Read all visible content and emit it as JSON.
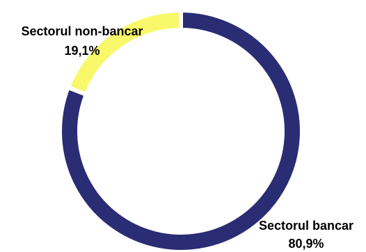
{
  "chart_data": {
    "type": "pie",
    "style": "donut",
    "title": "",
    "gap_between_slices": true,
    "slices": [
      {
        "name": "Sectorul bancar",
        "value": 80.9,
        "value_label": "80,9%",
        "color": "#2a2d74"
      },
      {
        "name": "Sectorul non-bancar",
        "value": 19.1,
        "value_label": "19,1%",
        "color": "#f8f86a"
      }
    ]
  }
}
